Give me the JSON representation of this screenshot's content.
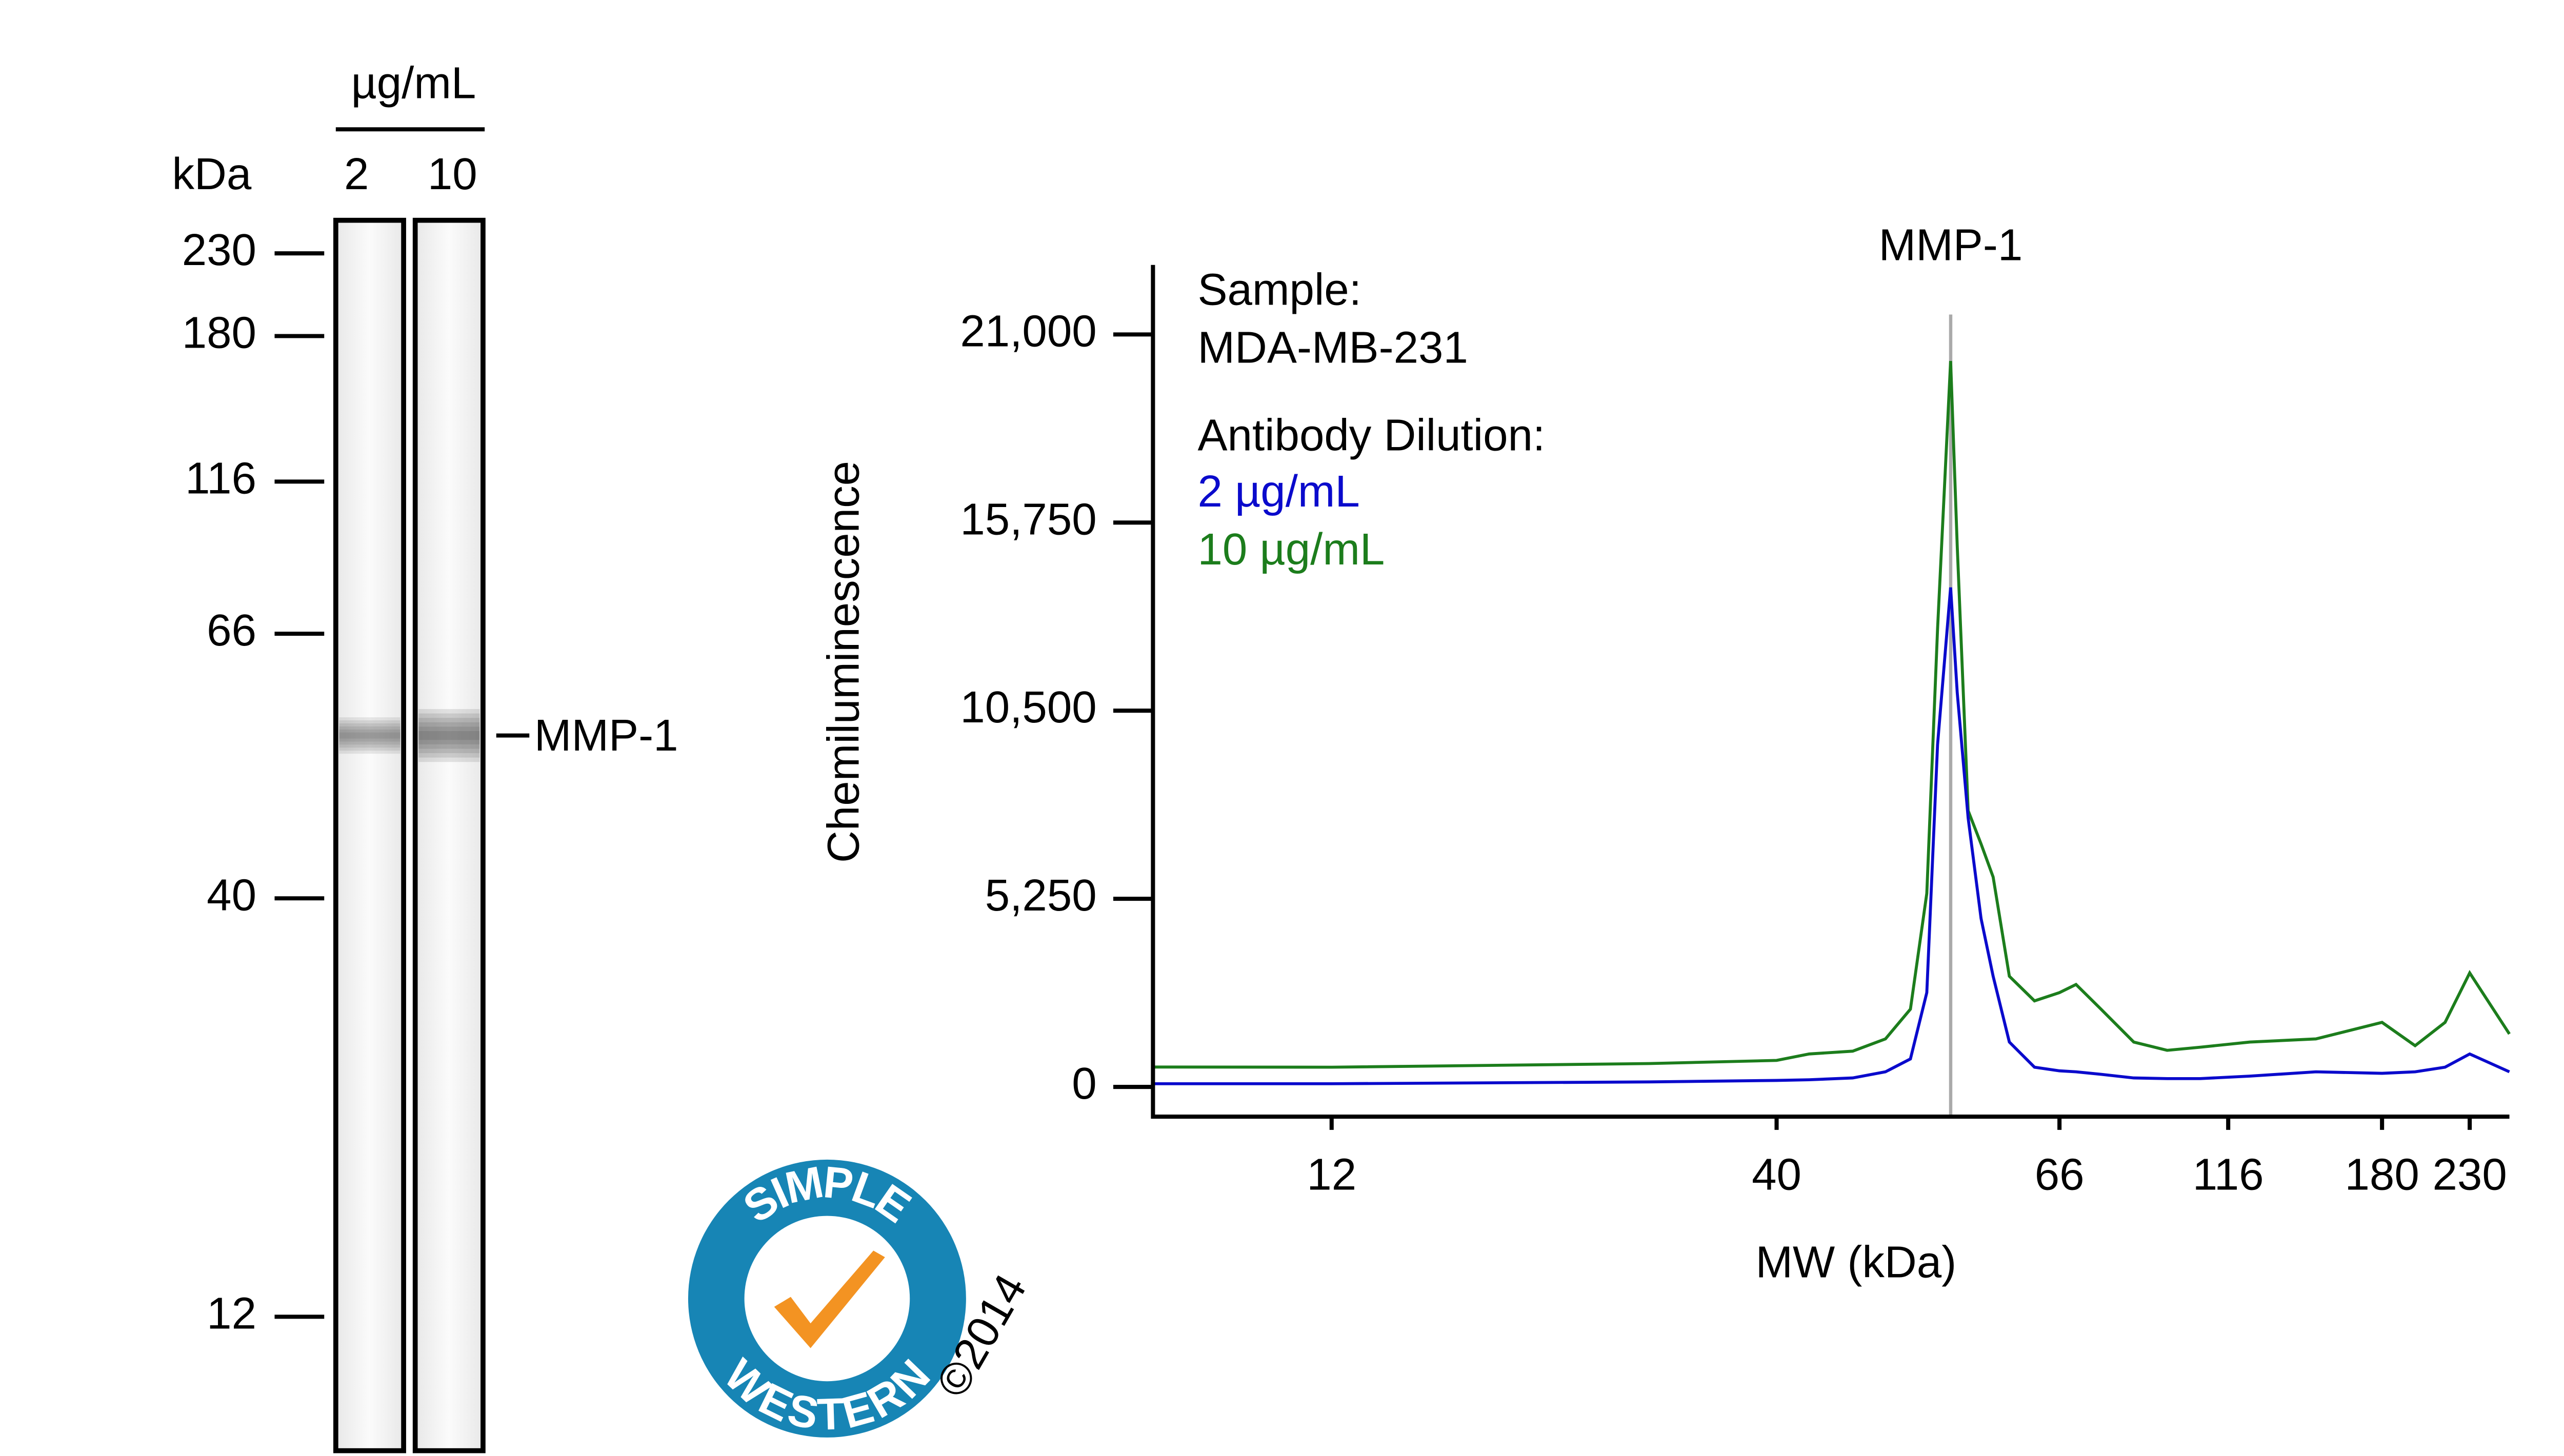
{
  "chart_data": [
    {
      "type": "lane",
      "header": "µg/mL",
      "axis_label": "kDa",
      "lanes": [
        "2",
        "10"
      ],
      "markers": [
        230,
        180,
        116,
        66,
        40,
        12
      ],
      "band": {
        "label": "MMP-1",
        "kda": 56
      }
    },
    {
      "type": "line",
      "xlabel": "MW (kDa)",
      "ylabel": "Chemiluminescence",
      "xscale": "calibrated",
      "annotations": [
        {
          "text": "MMP-1",
          "x": 56
        }
      ],
      "notes": [
        "Sample:",
        "MDA-MB-231",
        "Antibody Dilution:"
      ],
      "x": [
        1,
        12,
        32,
        40,
        43,
        47,
        50,
        52.3,
        53.8,
        54.8,
        56,
        56.6,
        57.6,
        58.8,
        59.9,
        61.4,
        63.7,
        66,
        70.9,
        78.3,
        88,
        97.9,
        107.7,
        125,
        152.5,
        180,
        198.9,
        215.9,
        230,
        252.6
      ],
      "series": [
        {
          "name": "2 µg/mL",
          "color": "#0a0acc",
          "values": [
            90,
            90,
            140,
            180,
            200,
            250,
            420,
            780,
            2630,
            9550,
            13940,
            11000,
            7500,
            4700,
            3090,
            1250,
            550,
            450,
            420,
            350,
            250,
            230,
            230,
            300,
            420,
            380,
            420,
            550,
            920,
            420
          ]
        },
        {
          "name": "10 µg/mL",
          "color": "#1c7d1c",
          "values": [
            554,
            550,
            650,
            740,
            920,
            1000,
            1340,
            2170,
            5400,
            12780,
            20260,
            15090,
            7710,
            6780,
            5860,
            3090,
            2400,
            2630,
            2860,
            2170,
            1250,
            1020,
            1110,
            1250,
            1340,
            1800,
            1150,
            1800,
            3180,
            1480
          ]
        }
      ],
      "xlim": [
        1,
        252.6
      ],
      "xticks": [
        12,
        40,
        66,
        116,
        180,
        230
      ],
      "ylim": [
        -830,
        22940
      ],
      "yticks": [
        {
          "value": 21000,
          "label": "21,000"
        },
        {
          "value": 15750,
          "label": "15,750"
        },
        {
          "value": 10500,
          "label": "10,500"
        },
        {
          "value": 5250,
          "label": "5,250"
        },
        0
      ]
    },
    {
      "type": "logo",
      "top": "SIMPLE",
      "bottom": "WESTERN",
      "copyright": "©2014"
    }
  ]
}
